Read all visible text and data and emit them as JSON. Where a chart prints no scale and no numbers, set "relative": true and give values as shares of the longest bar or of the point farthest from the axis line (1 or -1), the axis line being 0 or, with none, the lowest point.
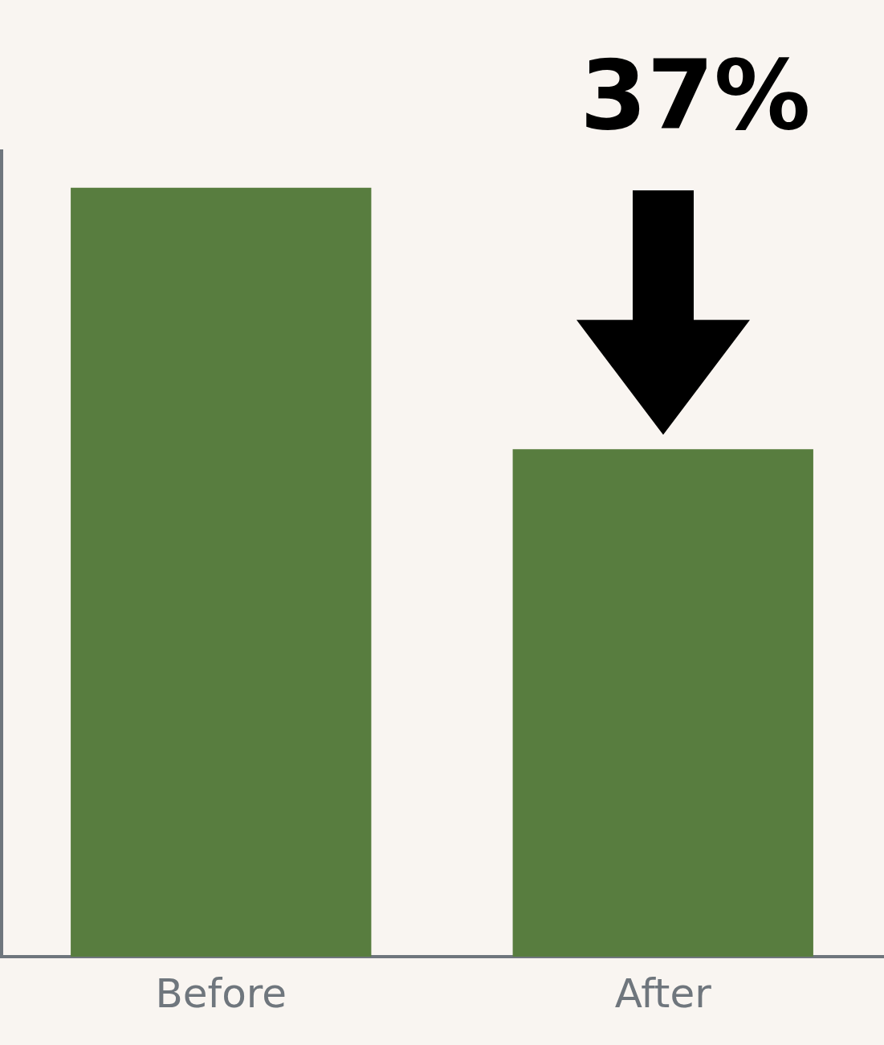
{
  "chart_data": {
    "type": "bar",
    "relative": true,
    "categories": [
      "Before",
      "After"
    ],
    "values": [
      1,
      0.66
    ],
    "color": "#587d3f",
    "annotations": [
      "37%"
    ]
  }
}
